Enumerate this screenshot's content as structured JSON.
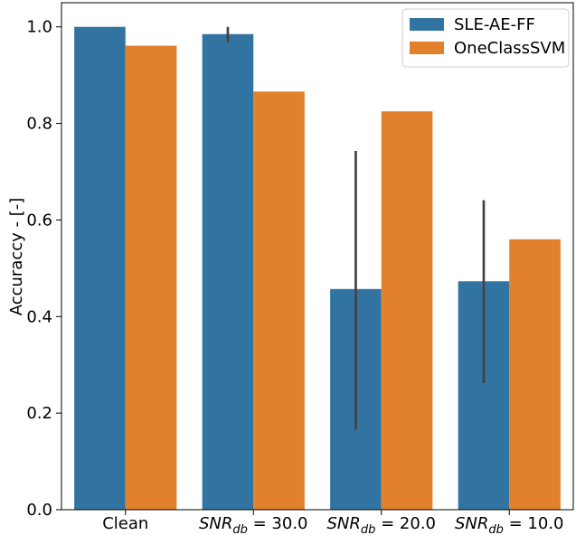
{
  "chart_data": {
    "type": "bar",
    "ylabel": "Accuraccy - [-]",
    "xlabel": "",
    "ylim": [
      0.0,
      1.05
    ],
    "yticks": [
      "0.0",
      "0.2",
      "0.4",
      "0.6",
      "0.8",
      "1.0"
    ],
    "grid": false,
    "legend_position": "top-right",
    "categories": [
      {
        "label": "Clean",
        "plain": true
      },
      {
        "label": "SNR",
        "sub": "db",
        "rest": " = 30.0"
      },
      {
        "label": "SNR",
        "sub": "db",
        "rest": " = 20.0"
      },
      {
        "label": "SNR",
        "sub": "db",
        "rest": " = 10.0"
      }
    ],
    "series": [
      {
        "name": "SLE-AE-FF",
        "color": "#3274a1",
        "values": [
          1.0,
          0.985,
          0.457,
          0.473
        ],
        "err_low": [
          null,
          0.968,
          0.166,
          0.262
        ],
        "err_high": [
          null,
          1.0,
          0.743,
          0.641
        ]
      },
      {
        "name": "OneClassSVM",
        "color": "#e1812c",
        "values": [
          0.961,
          0.866,
          0.825,
          0.56
        ]
      }
    ]
  }
}
